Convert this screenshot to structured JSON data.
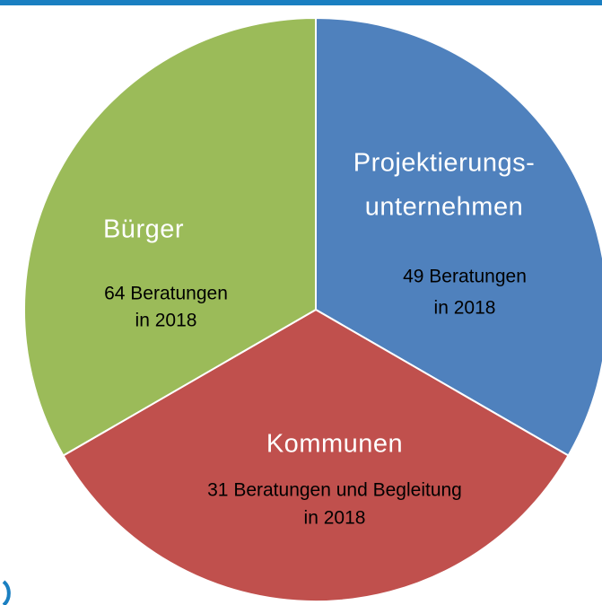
{
  "segments": [
    {
      "title_lines": [
        "Projektierungs-",
        "unternehmen"
      ],
      "detail_lines": [
        "49 Beratungen",
        "in 2018"
      ]
    },
    {
      "title_lines": [
        "Kommunen"
      ],
      "detail_lines": [
        "31 Beratungen und Begleitung",
        "in 2018"
      ]
    },
    {
      "title_lines": [
        "Bürger"
      ],
      "detail_lines": [
        "64 Beratungen",
        "in 2018"
      ]
    }
  ]
}
